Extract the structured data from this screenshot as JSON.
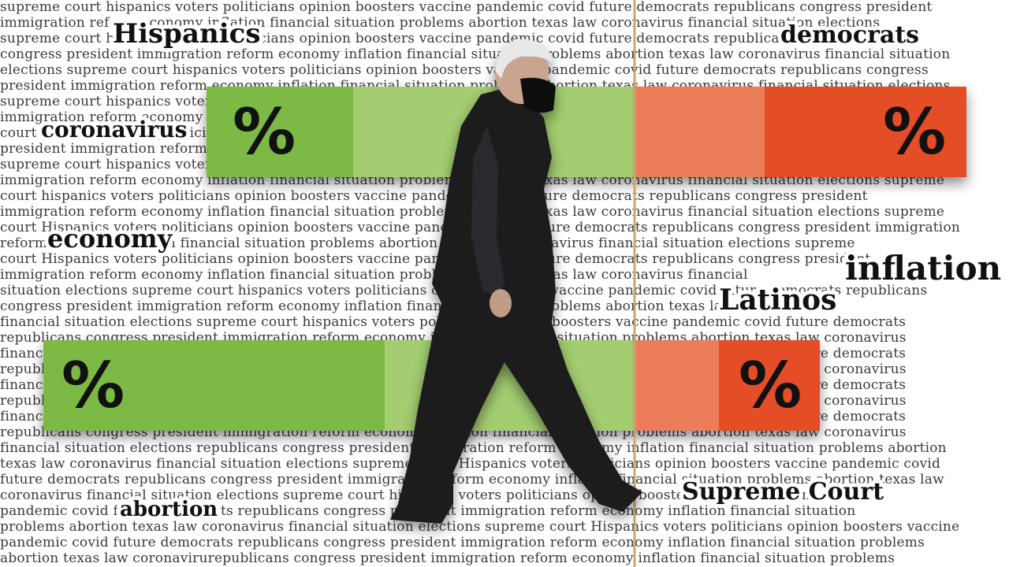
{
  "background_lines": [
    "supreme court hispanics voters politicians opinion boosters vaccine pandemic covid future democrats republicans congress president",
    "immigration reform economy inflation financial situation problems abortion texas law coronavirus financial situation elections",
    "supreme court hispanics voters politicians opinion boosters vaccine pandemic covid future democrats republicans",
    "congress president immigration reform economy inflation financial situation problems abortion texas law coronavirus financial situation",
    "elections supreme court hispanics voters politicians opinion boosters vaccine pandemic covid future democrats republicans congress",
    "president immigration reform economy inflation financial situation problems abortion texas law coronavirus financial situation elections",
    "supreme court hispanics voters politicians opinion boosters vaccine pandemic covid future democrats republicans congress president",
    "immigration reform economy inflation financial situation problems abortion texas law coronavirus financial situation elections supreme",
    "court hispanics voters politicians opinion boosters vaccine pandemic covid future democrats republicans congress president",
    "president immigration reform economy inflation financial situation problems abortion texas law coronavirus financial situation elections",
    "supreme court hispanics voters politicians opinion boosters vaccine pandemic covid future democrats republicans congress president",
    "immigration reform economy inflation financial situation problems abortion texas law coronavirus financial situation elections supreme",
    "court hispanics voters politicians opinion boosters vaccine pandemic covid future democrats republicans congress president",
    "immigration reform economy inflation financial situation problems abortion texas law coronavirus financial situation elections supreme",
    "court Hispanics voters politicians opinion boosters vaccine pandemic covid future democrats republicans congress president immigration",
    "reform economy inflation financial situation problems abortion texas law coronavirus financial situation elections supreme",
    "court Hispanics voters politicians opinion boosters vaccine pandemic covid future democrats republicans congress president",
    "immigration reform economy inflation financial situation problems abortion texas law coronavirus financial",
    "situation elections supreme court hispanics voters politicians opinion boosters vaccine pandemic covid future democrats republicans",
    "congress president immigration reform economy inflation financial situation problems abortion texas law coronavirus",
    "financial situation elections supreme court hispanics voters politicians opinion boosters vaccine pandemic covid future democrats",
    "republicans congress president immigration reform economy inflation financial situation problems abortion texas law coronavirus",
    "financial situation elections supreme court hispanics voters politicians opinion boosters vaccine pandemic covid future democrats",
    "republicans congress president immigration reform economy inflation financial situation problems abortion texas law coronavirus",
    "financial situation elections supreme court hispanics voters politicians opinion boosters vaccine pandemic covid future democrats",
    "republicans congress president immigration reform economy inflation financial situation problems abortion texas law coronavirus",
    "financial situation elections supreme court hispanics voters politicians opinion boosters vaccine pandemic covid future democrats",
    "republicans congress president immigration reform economy inflation financial situation problems abortion texas law coronavirus",
    "financial situation elections republicans congress president immigration reform economy inflation financial situation problems abortion",
    "texas law coronavirus financial situation elections supreme court Hispanics voters politicians opinion boosters vaccine pandemic covid",
    "future democrats republicans congress president immigration reform economy inflation financial situation problems abortion texas law",
    "coronavirus financial situation elections supreme court hispanics voters politicians opinion boosters vaccine pandemic covid",
    "pandemic covid future democrats republicans congress president immigration reform economy inflation financial situation",
    "problems abortion texas law coronavirus financial situation elections supreme court Hispanics voters politicians opinion boosters vaccine",
    "pandemic covid future democrats republicans congress president immigration reform economy inflation financial situation problems",
    "abortion texas law coronavirurepublicans congress president immigration reform economy inflation financial situation problems"
  ],
  "keywords": [
    "Hispanics",
    "democrats",
    "coronavirus",
    "economy",
    "inflation",
    "Latinos",
    "abortion",
    "Supreme Court"
  ],
  "bars": [
    {
      "left_label": "%",
      "right_label": "%"
    },
    {
      "left_label": "%",
      "right_label": "%"
    }
  ]
}
